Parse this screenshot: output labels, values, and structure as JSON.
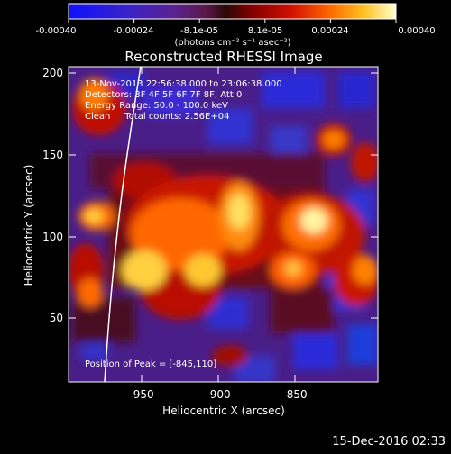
{
  "colorbar": {
    "tick_labels": [
      "-0.00040",
      "-0.00024",
      "-8.1e-05",
      "8.1e-05",
      "0.00024",
      "0.00040"
    ],
    "units_label": "(photons cm⁻² s⁻¹ asec⁻²)"
  },
  "plot": {
    "title": "Reconstructed RHESSI Image",
    "xlabel": "Heliocentric X (arcsec)",
    "ylabel": "Heliocentric Y (arcsec)",
    "x_ticks": [
      "-950",
      "-900",
      "-850"
    ],
    "y_ticks": [
      "50",
      "100",
      "150",
      "200"
    ],
    "annotations": {
      "time_range": "13-Nov-2013 22:56:38.000 to 23:06:38.000",
      "detectors": "Detectors: 3F 4F 5F 6F 7F 8F, Att 0",
      "energy_range": "Energy Range: 50.0 - 100.0 keV",
      "clean": "Clean     Total counts: 2.56E+04",
      "peak": "Position of Peak = [-845,110]"
    }
  },
  "footer": {
    "timestamp": "15-Dec-2016 02:33"
  }
}
